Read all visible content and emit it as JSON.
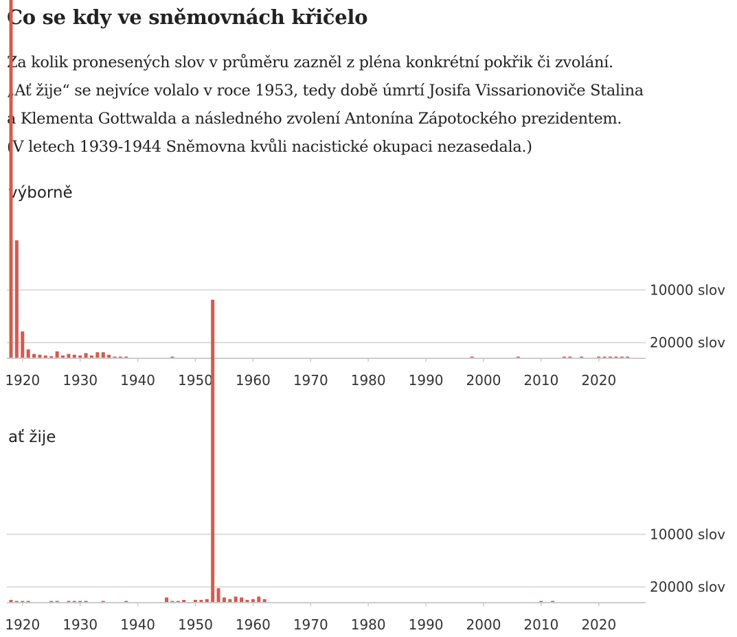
{
  "title": "Co se kdy ve sněmovnách křičelo",
  "subtitle_lines": [
    "Za kolik pronesených slov v průměru zazněl z pléna konkrétní pokřik či zvolání.",
    "„Ať žije“ se nejvíce volalo v roce 1953, tedy době úmrtí Josifa Vissarionoviče Stalina",
    "a Klementa Gottwalda a následného zvolení Antonína Zápotockého prezidentem.",
    "(V letech 1939-1944 Sněmovna kvůli nacistické okupaci nezasedala.)"
  ],
  "colors": {
    "bar": "#d45a4f",
    "grid": "#dddddd",
    "axis": "#cccccc",
    "text": "#222222"
  },
  "chart_data": [
    {
      "type": "bar",
      "title": "výborně",
      "x_ticks": [
        1920,
        1930,
        1940,
        1950,
        1960,
        1970,
        1980,
        1990,
        2000,
        2010,
        2020
      ],
      "x_range": [
        1917,
        2026
      ],
      "gridlines": [
        {
          "value": 10000,
          "label": "10000 slov"
        },
        {
          "value": 20000,
          "label": "20000 slov"
        }
      ],
      "y_scale": "reciprocal",
      "y_axis_max": 28000,
      "x": [
        1918,
        1919,
        1920,
        1921,
        1922,
        1923,
        1924,
        1925,
        1926,
        1927,
        1928,
        1929,
        1930,
        1931,
        1932,
        1933,
        1934,
        1935,
        1936,
        1937,
        1938,
        1946,
        1998,
        2006,
        2014,
        2015,
        2017,
        2020,
        2021,
        2022,
        2023,
        2024,
        2025
      ],
      "values": [
        2400,
        6800,
        16500,
        23000,
        25500,
        26000,
        26500,
        27000,
        24000,
        26500,
        25500,
        26000,
        26500,
        25000,
        26500,
        24500,
        24500,
        26000,
        27500,
        27500,
        27500,
        27600,
        27700,
        27700,
        27700,
        27700,
        27600,
        27600,
        27700,
        27700,
        27700,
        27700,
        27700
      ]
    },
    {
      "type": "bar",
      "title": "ať žije",
      "x_ticks": [
        1920,
        1930,
        1940,
        1950,
        1960,
        1970,
        1980,
        1990,
        2000,
        2010,
        2020
      ],
      "x_range": [
        1917,
        2026
      ],
      "gridlines": [
        {
          "value": 10000,
          "label": "10000 slov"
        },
        {
          "value": 20000,
          "label": "20000 slov"
        }
      ],
      "y_scale": "reciprocal",
      "y_axis_max": 28000,
      "x": [
        1918,
        1919,
        1920,
        1921,
        1925,
        1926,
        1928,
        1929,
        1930,
        1931,
        1934,
        1938,
        1945,
        1946,
        1947,
        1948,
        1950,
        1951,
        1952,
        1953,
        1954,
        1955,
        1956,
        1957,
        1958,
        1959,
        1960,
        1961,
        1962,
        2010,
        2012
      ],
      "values": [
        26500,
        27500,
        27300,
        27700,
        27600,
        27700,
        27700,
        27400,
        27500,
        27700,
        27700,
        27700,
        25000,
        27500,
        27500,
        26500,
        26500,
        26500,
        26000,
        3100,
        20500,
        25000,
        26000,
        24500,
        25000,
        26500,
        26000,
        24500,
        26000,
        27700,
        27700
      ]
    }
  ]
}
